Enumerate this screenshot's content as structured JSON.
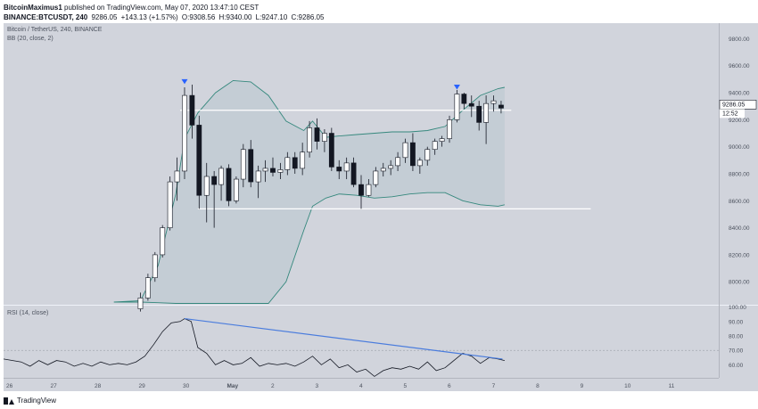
{
  "header": {
    "author": "BitcoinMaximus1",
    "published_text": "published on TradingView.com, May 07, 2020 13:47:10 CEST",
    "symbol_line": "BINANCE:BTCUSDT, 240",
    "ohlc": {
      "last": "9286.05",
      "change": "+143.13 (+1.57%)",
      "O": "9308.56",
      "H": "9340.00",
      "L": "9247.10",
      "C": "9286.05"
    }
  },
  "footer": {
    "brand": "TradingView"
  },
  "chart_data": {
    "type": "candlestick",
    "title": "Bitcoin / TetherUS, 240, BINANCE",
    "indicator_label": "BB (20, close, 2)",
    "price_axis": {
      "ticks": [
        "9800.00",
        "9600.00",
        "9400.00",
        "9200.00",
        "9000.00",
        "8800.00",
        "8600.00",
        "8400.00",
        "8200.00",
        "8000.00"
      ],
      "range": [
        7830,
        9915
      ]
    },
    "last_price_label": "9286.05",
    "countdown_label": "12:52",
    "x_axis": {
      "labels": [
        "26",
        "27",
        "28",
        "29",
        "30",
        "May",
        "2",
        "3",
        "4",
        "5",
        "6",
        "7",
        "8",
        "9",
        "10",
        "11"
      ],
      "range_days": [
        0,
        16.2
      ]
    },
    "candles": [
      {
        "t": 3.1,
        "o": 7800,
        "h": 7920,
        "l": 7780,
        "c": 7880
      },
      {
        "t": 3.27,
        "o": 7880,
        "h": 8060,
        "l": 7860,
        "c": 8030
      },
      {
        "t": 3.43,
        "o": 8030,
        "h": 8220,
        "l": 8000,
        "c": 8200
      },
      {
        "t": 3.6,
        "o": 8200,
        "h": 8420,
        "l": 8180,
        "c": 8400
      },
      {
        "t": 3.77,
        "o": 8400,
        "h": 8780,
        "l": 8380,
        "c": 8740
      },
      {
        "t": 3.93,
        "o": 8740,
        "h": 8920,
        "l": 8600,
        "c": 8820
      },
      {
        "t": 4.1,
        "o": 8820,
        "h": 9440,
        "l": 8760,
        "c": 9380
      },
      {
        "t": 4.27,
        "o": 9380,
        "h": 9460,
        "l": 9060,
        "c": 9160
      },
      {
        "t": 4.43,
        "o": 9160,
        "h": 9230,
        "l": 8540,
        "c": 8640
      },
      {
        "t": 4.6,
        "o": 8640,
        "h": 8880,
        "l": 8440,
        "c": 8780
      },
      {
        "t": 4.77,
        "o": 8780,
        "h": 8820,
        "l": 8400,
        "c": 8720
      },
      {
        "t": 4.93,
        "o": 8720,
        "h": 8860,
        "l": 8600,
        "c": 8840
      },
      {
        "t": 5.1,
        "o": 8840,
        "h": 8870,
        "l": 8560,
        "c": 8600
      },
      {
        "t": 5.27,
        "o": 8600,
        "h": 8780,
        "l": 8580,
        "c": 8760
      },
      {
        "t": 5.43,
        "o": 8760,
        "h": 9020,
        "l": 8700,
        "c": 8980
      },
      {
        "t": 5.6,
        "o": 8980,
        "h": 9050,
        "l": 8700,
        "c": 8740
      },
      {
        "t": 5.77,
        "o": 8740,
        "h": 8860,
        "l": 8620,
        "c": 8820
      },
      {
        "t": 5.93,
        "o": 8820,
        "h": 8900,
        "l": 8740,
        "c": 8840
      },
      {
        "t": 6.1,
        "o": 8840,
        "h": 8920,
        "l": 8780,
        "c": 8810
      },
      {
        "t": 6.27,
        "o": 8810,
        "h": 8880,
        "l": 8760,
        "c": 8830
      },
      {
        "t": 6.43,
        "o": 8830,
        "h": 8960,
        "l": 8790,
        "c": 8920
      },
      {
        "t": 6.6,
        "o": 8920,
        "h": 8960,
        "l": 8800,
        "c": 8840
      },
      {
        "t": 6.77,
        "o": 8840,
        "h": 9030,
        "l": 8790,
        "c": 8960
      },
      {
        "t": 6.93,
        "o": 8960,
        "h": 9190,
        "l": 8920,
        "c": 9140
      },
      {
        "t": 7.1,
        "o": 9140,
        "h": 9210,
        "l": 8980,
        "c": 9040
      },
      {
        "t": 7.27,
        "o": 9040,
        "h": 9130,
        "l": 8960,
        "c": 9100
      },
      {
        "t": 7.43,
        "o": 9100,
        "h": 9140,
        "l": 8820,
        "c": 8850
      },
      {
        "t": 7.6,
        "o": 8850,
        "h": 8900,
        "l": 8760,
        "c": 8820
      },
      {
        "t": 7.77,
        "o": 8820,
        "h": 8920,
        "l": 8760,
        "c": 8880
      },
      {
        "t": 7.93,
        "o": 8880,
        "h": 8920,
        "l": 8700,
        "c": 8720
      },
      {
        "t": 8.1,
        "o": 8720,
        "h": 8790,
        "l": 8540,
        "c": 8640
      },
      {
        "t": 8.27,
        "o": 8640,
        "h": 8760,
        "l": 8630,
        "c": 8720
      },
      {
        "t": 8.43,
        "o": 8720,
        "h": 8850,
        "l": 8700,
        "c": 8820
      },
      {
        "t": 8.6,
        "o": 8820,
        "h": 8880,
        "l": 8780,
        "c": 8840
      },
      {
        "t": 8.77,
        "o": 8840,
        "h": 8900,
        "l": 8790,
        "c": 8860
      },
      {
        "t": 8.93,
        "o": 8860,
        "h": 8960,
        "l": 8820,
        "c": 8920
      },
      {
        "t": 9.1,
        "o": 8920,
        "h": 9060,
        "l": 8880,
        "c": 9030
      },
      {
        "t": 9.27,
        "o": 9030,
        "h": 9100,
        "l": 8820,
        "c": 8860
      },
      {
        "t": 9.43,
        "o": 8860,
        "h": 8920,
        "l": 8800,
        "c": 8900
      },
      {
        "t": 9.6,
        "o": 8900,
        "h": 9000,
        "l": 8860,
        "c": 8980
      },
      {
        "t": 9.77,
        "o": 8980,
        "h": 9060,
        "l": 8940,
        "c": 9040
      },
      {
        "t": 9.93,
        "o": 9040,
        "h": 9080,
        "l": 9000,
        "c": 9060
      },
      {
        "t": 10.1,
        "o": 9060,
        "h": 9230,
        "l": 9030,
        "c": 9200
      },
      {
        "t": 10.27,
        "o": 9200,
        "h": 9420,
        "l": 9180,
        "c": 9390
      },
      {
        "t": 10.43,
        "o": 9390,
        "h": 9400,
        "l": 9280,
        "c": 9320
      },
      {
        "t": 10.6,
        "o": 9320,
        "h": 9380,
        "l": 9220,
        "c": 9300
      },
      {
        "t": 10.77,
        "o": 9300,
        "h": 9340,
        "l": 9120,
        "c": 9180
      },
      {
        "t": 10.93,
        "o": 9180,
        "h": 9380,
        "l": 9020,
        "c": 9320
      },
      {
        "t": 11.1,
        "o": 9320,
        "h": 9380,
        "l": 9260,
        "c": 9340
      },
      {
        "t": 11.27,
        "o": 9308.56,
        "h": 9340,
        "l": 9247.1,
        "c": 9286.05
      }
    ],
    "bollinger": {
      "t": [
        2.5,
        3.1,
        3.5,
        3.9,
        4.1,
        4.4,
        4.8,
        5.2,
        5.6,
        6.0,
        6.4,
        6.8,
        7.0,
        7.3,
        7.6,
        8.0,
        8.4,
        8.8,
        9.2,
        9.6,
        10.0,
        10.4,
        10.8,
        11.2,
        11.35
      ],
      "upper": [
        7850,
        7860,
        8120,
        8650,
        9060,
        9250,
        9400,
        9490,
        9480,
        9380,
        9190,
        9120,
        9190,
        9070,
        9080,
        9090,
        9100,
        9110,
        9110,
        9120,
        9150,
        9270,
        9380,
        9430,
        9440
      ],
      "lower": [
        7850,
        7850,
        7845,
        7840,
        7840,
        7840,
        7840,
        7840,
        7840,
        7840,
        8000,
        8380,
        8560,
        8620,
        8650,
        8640,
        8620,
        8630,
        8650,
        8660,
        8660,
        8600,
        8570,
        8560,
        8570
      ]
    },
    "horizontal_lines": [
      {
        "price": 9270,
        "t0": 4.0,
        "t1": 11.5
      },
      {
        "price": 8540,
        "t0": 4.4,
        "t1": 13.3
      }
    ],
    "markers": [
      {
        "t": 4.1,
        "price": 9480
      },
      {
        "t": 10.27,
        "price": 9440
      }
    ],
    "rsi": {
      "label": "RSI (14, close)",
      "axis_ticks": [
        "100.00",
        "90.00",
        "80.00",
        "70.00",
        "60.00"
      ],
      "range": [
        51,
        101
      ],
      "reference_level": 70,
      "t": [
        0,
        0.4,
        0.6,
        0.8,
        1.0,
        1.2,
        1.4,
        1.6,
        1.8,
        2.0,
        2.2,
        2.4,
        2.6,
        2.8,
        3.0,
        3.2,
        3.4,
        3.6,
        3.8,
        4.0,
        4.1,
        4.25,
        4.4,
        4.6,
        4.8,
        5.0,
        5.2,
        5.4,
        5.6,
        5.8,
        6.0,
        6.2,
        6.4,
        6.6,
        6.8,
        7.0,
        7.2,
        7.4,
        7.6,
        7.8,
        8.0,
        8.2,
        8.4,
        8.6,
        8.8,
        9.0,
        9.2,
        9.4,
        9.6,
        9.8,
        10.0,
        10.2,
        10.4,
        10.6,
        10.8,
        11.0,
        11.2,
        11.35
      ],
      "values": [
        64,
        62,
        59,
        63,
        60,
        63,
        62,
        59,
        61,
        59,
        62,
        60,
        61,
        60,
        62,
        66,
        74,
        83,
        89,
        90,
        92,
        90,
        72,
        68,
        60,
        63,
        60,
        61,
        65,
        59,
        61,
        60,
        61,
        59,
        62,
        66,
        60,
        64,
        58,
        60,
        55,
        57,
        52,
        56,
        58,
        57,
        59,
        57,
        62,
        56,
        58,
        63,
        68,
        66,
        61,
        65,
        64,
        63
      ],
      "trendline": {
        "t0": 4.1,
        "v0": 92,
        "t1": 11.3,
        "v1": 64
      }
    }
  }
}
